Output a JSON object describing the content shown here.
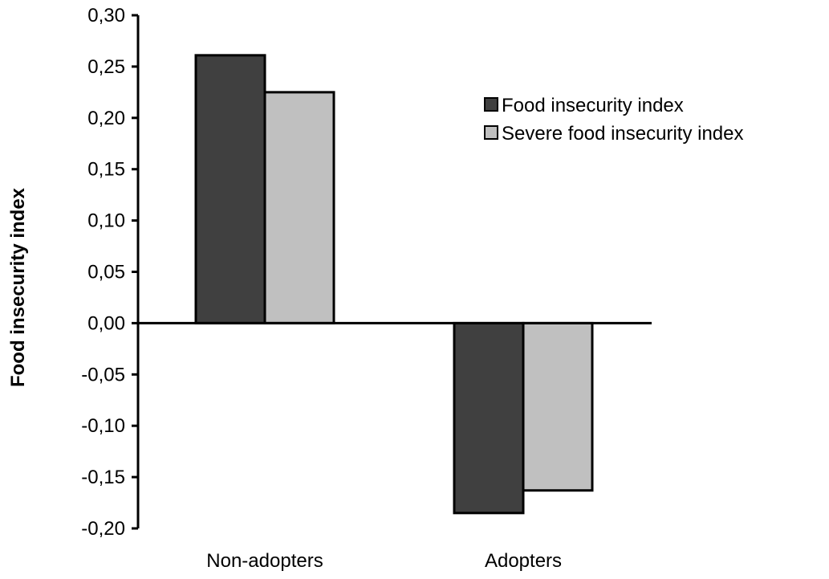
{
  "chart_data": {
    "type": "bar",
    "title": "",
    "xlabel": "",
    "ylabel": "Food insecurity index",
    "categories": [
      "Non-adopters",
      "Adopters"
    ],
    "series": [
      {
        "name": "Food insecurity index",
        "values": [
          0.261,
          -0.185
        ],
        "color": "#404040"
      },
      {
        "name": "Severe food insecurity index",
        "values": [
          0.225,
          -0.163
        ],
        "color": "#c0c0c0"
      }
    ],
    "ylim": [
      -0.2,
      0.3
    ],
    "yticks": [
      0.3,
      0.25,
      0.2,
      0.15,
      0.1,
      0.05,
      0.0,
      -0.05,
      -0.1,
      -0.15,
      -0.2
    ],
    "ytick_labels": [
      "0,30",
      "0,25",
      "0,20",
      "0,15",
      "0,10",
      "0,05",
      "0,00",
      "-0,05",
      "-0,10",
      "-0,15",
      "-0,20"
    ],
    "grid": false,
    "legend_position": "top-right"
  }
}
